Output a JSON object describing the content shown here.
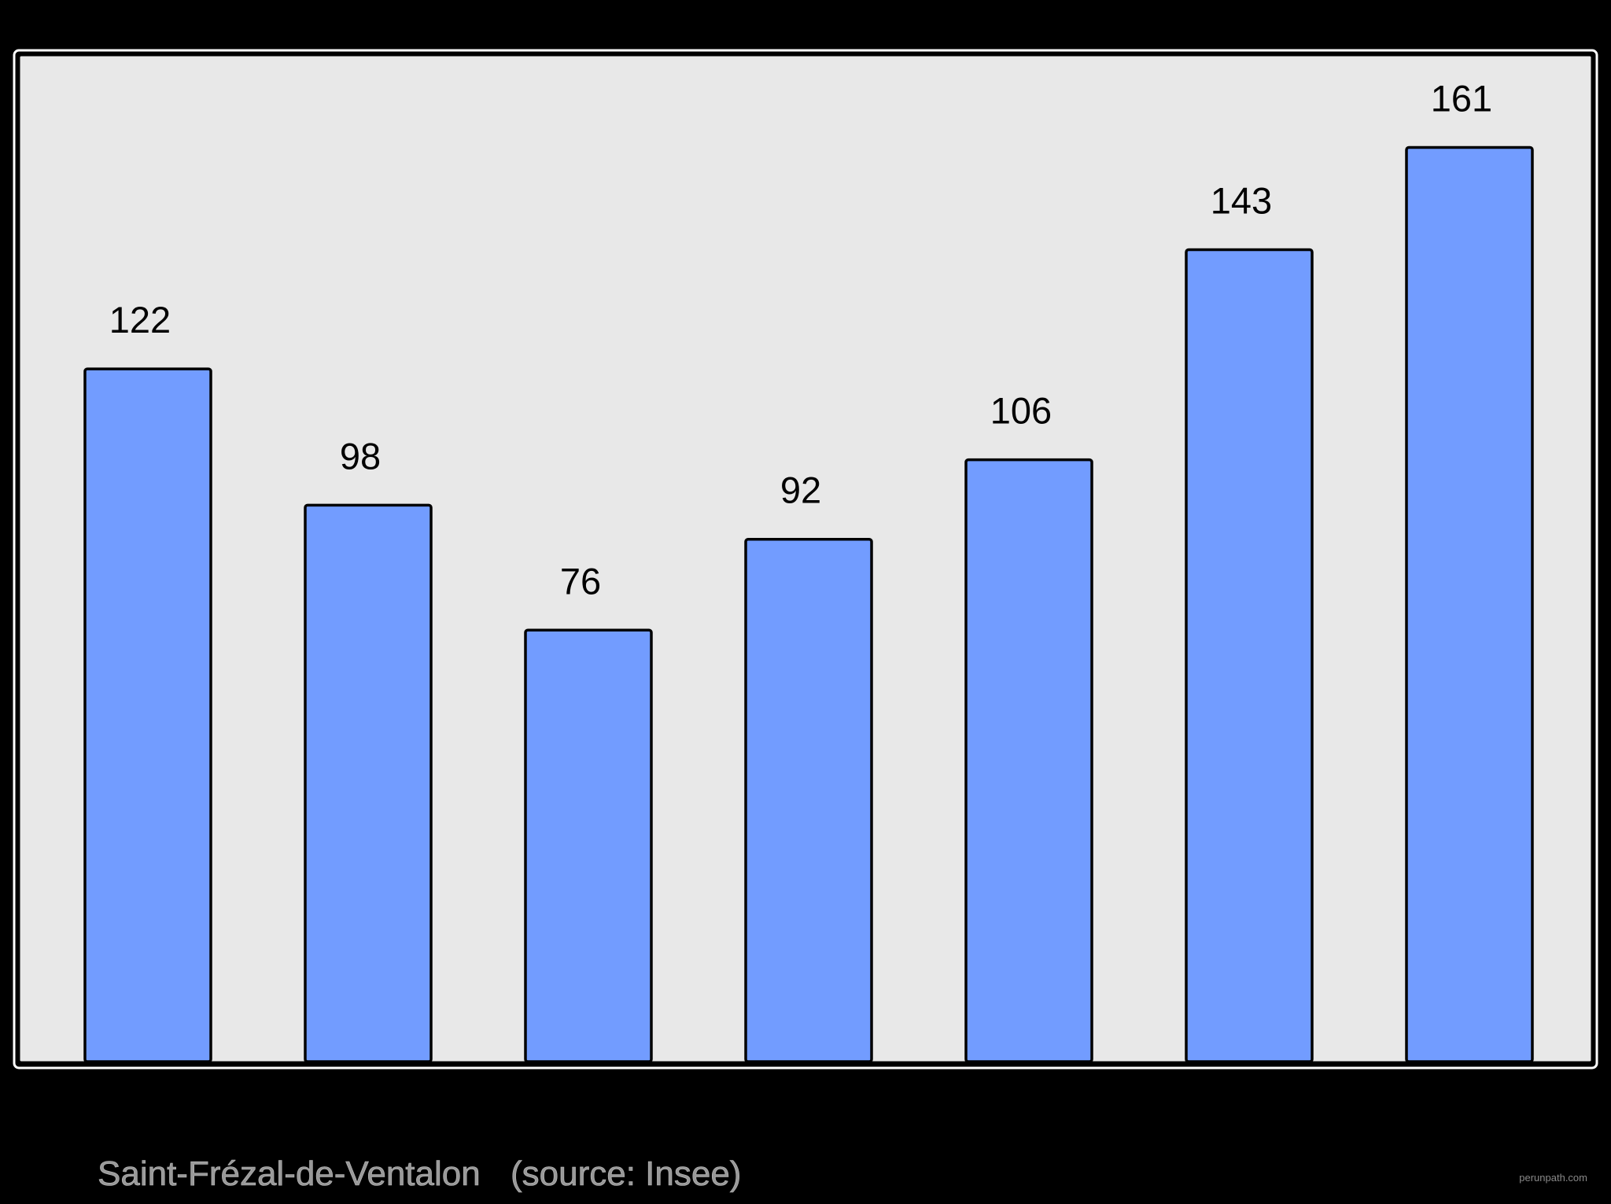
{
  "chart_data": {
    "type": "bar",
    "values": [
      122,
      98,
      76,
      92,
      106,
      143,
      161
    ],
    "color": "#729cff",
    "ylim": [
      0,
      177
    ],
    "caption": "Saint-Frézal-de-Ventalon",
    "source": "(source: Insee)",
    "watermark": "perunpath.com"
  }
}
